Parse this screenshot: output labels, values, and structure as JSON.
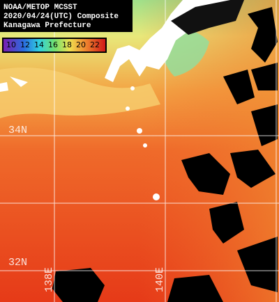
{
  "header": {
    "lines": [
      "NOAA/METOP MCSST",
      "2020/04/24(UTC) Composite",
      "Kanagawa Prefecture"
    ]
  },
  "colorbar": {
    "labels": [
      10,
      12,
      14,
      16,
      18,
      20,
      22
    ]
  },
  "grid": {
    "latitudes": [
      "34N",
      "32N"
    ],
    "longitudes": [
      "138E",
      "140E"
    ]
  }
}
